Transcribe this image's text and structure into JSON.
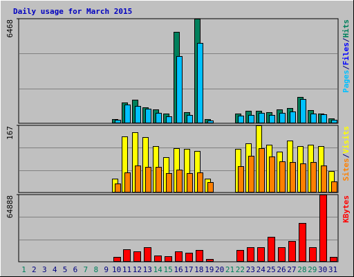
{
  "title": "Daily usage for March 2015",
  "chart_data": [
    {
      "type": "bar",
      "legend": [
        "Pages",
        "/",
        "Files",
        "/",
        "Hits"
      ],
      "legend_colors": [
        "#00c0ff",
        "#000080",
        "#0000ff",
        "#000080",
        "#00805c"
      ],
      "series": [
        {
          "color": "#00805c",
          "values": [
            0,
            0,
            0,
            0,
            0,
            0,
            0,
            0,
            0,
            259,
            1294,
            1466,
            992,
            862,
            604,
            5649,
            690,
            6468,
            259,
            0,
            0,
            604,
            776,
            776,
            690,
            862,
            949,
            1639,
            819,
            604,
            302
          ]
        },
        {
          "color": "#00c0ff",
          "values": [
            0,
            0,
            0,
            0,
            0,
            0,
            0,
            0,
            0,
            216,
            1164,
            1078,
            906,
            647,
            431,
            4140,
            517,
            4959,
            172,
            0,
            0,
            474,
            517,
            647,
            517,
            647,
            733,
            1509,
            604,
            561,
            216
          ]
        }
      ],
      "ylim": [
        0,
        6468
      ],
      "yticks": [
        6468
      ]
    },
    {
      "type": "bar",
      "legend": [
        "Sites",
        "/",
        "Visits"
      ],
      "legend_colors": [
        "#ff8000",
        "#000080",
        "#ffff00"
      ],
      "series": [
        {
          "color": "#ffff00",
          "values": [
            0,
            0,
            0,
            0,
            0,
            0,
            0,
            0,
            0,
            35,
            139,
            150,
            137,
            115,
            87,
            111,
            108,
            104,
            35,
            0,
            0,
            108,
            122,
            167,
            118,
            101,
            129,
            115,
            118,
            115,
            54
          ]
        },
        {
          "color": "#ff8000",
          "values": [
            0,
            0,
            0,
            0,
            0,
            0,
            0,
            0,
            0,
            23,
            50,
            68,
            63,
            64,
            49,
            57,
            49,
            50,
            26,
            0,
            0,
            66,
            92,
            111,
            90,
            77,
            75,
            73,
            75,
            68,
            28
          ]
        }
      ],
      "ylim": [
        0,
        167
      ],
      "yticks": [
        167
      ]
    },
    {
      "type": "bar",
      "legend": [
        "KBytes"
      ],
      "legend_colors": [
        "#ff0000"
      ],
      "categories": [
        "1",
        "2",
        "3",
        "4",
        "5",
        "6",
        "7",
        "8",
        "9",
        "10",
        "11",
        "12",
        "13",
        "14",
        "15",
        "16",
        "17",
        "18",
        "19",
        "20",
        "21",
        "22",
        "23",
        "24",
        "25",
        "26",
        "27",
        "28",
        "29",
        "30",
        "31"
      ],
      "category_colors": [
        "#00805c",
        "#000080",
        "#000080",
        "#000080",
        "#000080",
        "#000080",
        "#00805c",
        "#00805c",
        "#000080",
        "#000080",
        "#000080",
        "#000080",
        "#000080",
        "#00805c",
        "#00805c",
        "#000080",
        "#000080",
        "#000080",
        "#000080",
        "#000080",
        "#00805c",
        "#00805c",
        "#000080",
        "#000080",
        "#000080",
        "#000080",
        "#000080",
        "#00805c",
        "#00805c",
        "#000080",
        "#000080"
      ],
      "series": [
        {
          "color": "#ff0000",
          "values": [
            0,
            0,
            0,
            0,
            0,
            0,
            0,
            0,
            0,
            4731,
            12167,
            10139,
            14194,
            6084,
            5407,
            10139,
            8787,
            11491,
            2704,
            0,
            0,
            11491,
            14194,
            14194,
            24333,
            14194,
            20278,
            37176,
            14194,
            64888,
            4731
          ]
        }
      ],
      "ylim": [
        0,
        64888
      ],
      "yticks": [
        64888
      ]
    }
  ]
}
